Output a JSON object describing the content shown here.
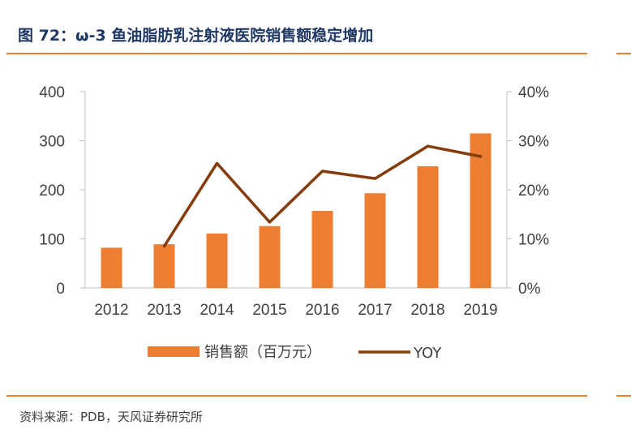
{
  "figure": {
    "title": "图 72：ω-3 鱼油脂肪乳注射液医院销售额稳定增加",
    "source": "资料来源：PDB，天风证券研究所"
  },
  "colors": {
    "bar": "#ed7d31",
    "line": "#843c0c",
    "title": "#1f3864",
    "rule": "#ed7d31",
    "axis": "#bfbfbf"
  },
  "chart_data": {
    "type": "bar",
    "categories": [
      "2012",
      "2013",
      "2014",
      "2015",
      "2016",
      "2017",
      "2018",
      "2019"
    ],
    "series": [
      {
        "name": "销售额（百万元）",
        "type": "bar",
        "axis": "left",
        "values": [
          82,
          89,
          111,
          126,
          157,
          193,
          248,
          315
        ]
      },
      {
        "name": "YOY",
        "type": "line",
        "axis": "right",
        "values": [
          null,
          8.5,
          25.4,
          13.4,
          23.8,
          22.3,
          28.9,
          26.8
        ]
      }
    ],
    "y_left": {
      "min": 0,
      "max": 400,
      "ticks": [
        "0",
        "100",
        "200",
        "300",
        "400"
      ]
    },
    "y_right": {
      "min": 0,
      "max": 40,
      "ticks": [
        "0%",
        "10%",
        "20%",
        "30%",
        "40%"
      ]
    },
    "grid": false,
    "legend": "bottom"
  }
}
